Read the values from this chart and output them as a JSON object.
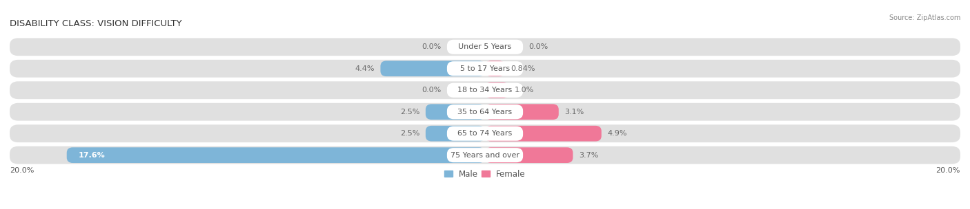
{
  "title": "DISABILITY CLASS: VISION DIFFICULTY",
  "source": "Source: ZipAtlas.com",
  "categories": [
    "Under 5 Years",
    "5 to 17 Years",
    "18 to 34 Years",
    "35 to 64 Years",
    "65 to 74 Years",
    "75 Years and over"
  ],
  "male_values": [
    0.0,
    4.4,
    0.0,
    2.5,
    2.5,
    17.6
  ],
  "female_values": [
    0.0,
    0.84,
    1.0,
    3.1,
    4.9,
    3.7
  ],
  "male_color": "#7eb5d8",
  "female_color": "#f07898",
  "max_val": 20.0,
  "background_color": "#ffffff",
  "row_bg_color": "#e0e0e0",
  "title_fontsize": 9.5,
  "label_fontsize": 8,
  "value_fontsize": 8,
  "axis_label_fontsize": 8,
  "legend_fontsize": 8.5,
  "x_axis_left": "20.0%",
  "x_axis_right": "20.0%",
  "male_labels": [
    "0.0%",
    "4.4%",
    "0.0%",
    "2.5%",
    "2.5%",
    "17.6%"
  ],
  "female_labels": [
    "0.0%",
    "0.84%",
    "1.0%",
    "3.1%",
    "4.9%",
    "3.7%"
  ]
}
